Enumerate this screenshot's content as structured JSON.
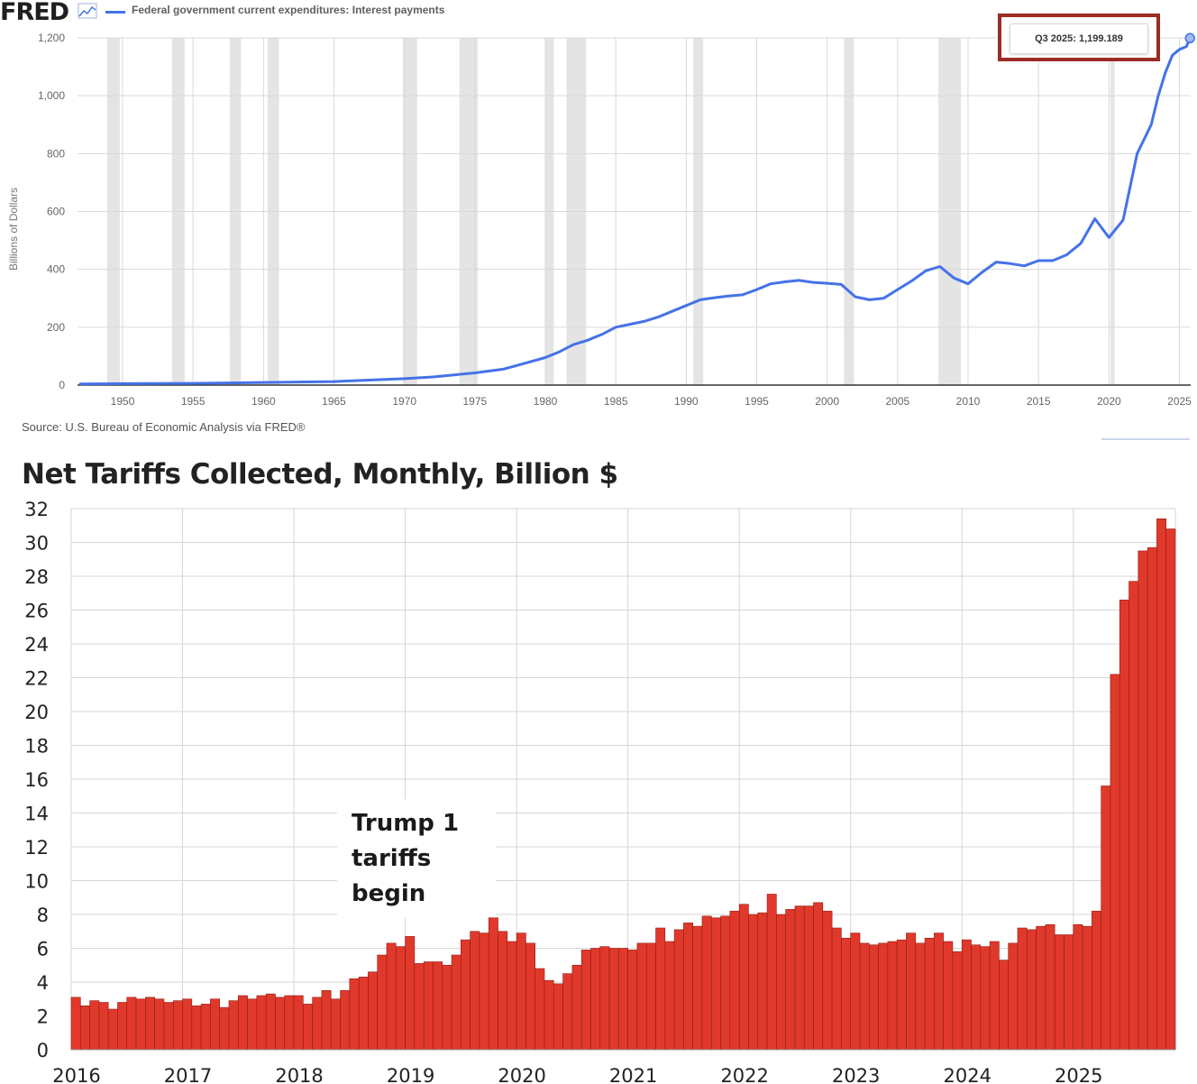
{
  "fred": {
    "logo": "FRED",
    "logo_icon": "line-chart-icon",
    "legend_label": "Federal government current expenditures: Interest payments",
    "ylabel": "Billions of Dollars",
    "source": "Source: U.S. Bureau of Economic Analysis via FRED®",
    "tooltip": "Q3 2025:  1,199.189",
    "colors": {
      "line": "#4572e8",
      "recession": "#e4e4e4",
      "highlight": "#9b2c23"
    }
  },
  "tariffs": {
    "title": "Net Tariffs Collected, Monthly, Billion $",
    "annotation": [
      "Trump 1",
      "tariffs",
      "begin"
    ],
    "colors": {
      "bar": "#e0392b",
      "bar_edge": "#8f1c12"
    }
  },
  "chart_data": [
    {
      "type": "line",
      "title": "Federal government current expenditures: Interest payments",
      "xlabel": "",
      "ylabel": "Billions of Dollars",
      "xlim": [
        1946.8,
        2025.8
      ],
      "ylim": [
        0,
        1200
      ],
      "yticks": [
        0,
        200,
        400,
        600,
        800,
        1000,
        1200
      ],
      "ytick_labels": [
        "0",
        "200",
        "400",
        "600",
        "800",
        "1,000",
        "1,200"
      ],
      "xticks": [
        1950,
        1955,
        1960,
        1965,
        1970,
        1975,
        1980,
        1985,
        1990,
        1995,
        2000,
        2005,
        2010,
        2015,
        2020,
        2025
      ],
      "recessions": [
        [
          1948.9,
          1949.8
        ],
        [
          1953.5,
          1954.4
        ],
        [
          1957.6,
          1958.4
        ],
        [
          1960.3,
          1961.1
        ],
        [
          1969.9,
          1970.9
        ],
        [
          1973.9,
          1975.2
        ],
        [
          1980.0,
          1980.6
        ],
        [
          1981.5,
          1982.9
        ],
        [
          1990.5,
          1991.2
        ],
        [
          2001.2,
          2001.9
        ],
        [
          2007.9,
          2009.5
        ],
        [
          2020.1,
          2020.4
        ]
      ],
      "series": [
        {
          "name": "Federal government current expenditures: Interest payments",
          "x": [
            1947,
            1950,
            1955,
            1960,
            1965,
            1970,
            1972,
            1975,
            1977,
            1978,
            1980,
            1981,
            1982,
            1983,
            1984,
            1985,
            1986,
            1987,
            1988,
            1989,
            1990,
            1991,
            1992,
            1993,
            1994,
            1995,
            1996,
            1997,
            1998,
            1999,
            2000,
            2001,
            2002,
            2003,
            2004,
            2005,
            2006,
            2007,
            2008,
            2009,
            2010,
            2011,
            2012,
            2013,
            2014,
            2015,
            2016,
            2017,
            2018,
            2019,
            2020,
            2021,
            2022,
            2023,
            2023.5,
            2024,
            2024.5,
            2025,
            2025.5,
            2025.75
          ],
          "y": [
            4,
            5,
            6,
            9,
            12,
            22,
            28,
            42,
            55,
            68,
            95,
            115,
            140,
            155,
            175,
            200,
            210,
            220,
            235,
            255,
            275,
            295,
            302,
            308,
            312,
            330,
            350,
            357,
            362,
            355,
            352,
            348,
            305,
            295,
            300,
            330,
            360,
            395,
            410,
            370,
            350,
            390,
            425,
            420,
            412,
            430,
            430,
            450,
            490,
            575,
            510,
            570,
            800,
            900,
            1000,
            1080,
            1140,
            1160,
            1170,
            1199.189
          ]
        }
      ],
      "annotations": [
        "Q3 2025:  1,199.189"
      ]
    },
    {
      "type": "bar",
      "title": "Net Tariffs Collected, Monthly, Billion $",
      "xlabel": "",
      "ylabel": "",
      "ylim": [
        0,
        32
      ],
      "yticks": [
        0,
        2,
        4,
        6,
        8,
        10,
        12,
        14,
        16,
        18,
        20,
        22,
        24,
        26,
        28,
        30,
        32
      ],
      "year_labels": [
        "2016",
        "2017",
        "2018",
        "2019",
        "2020",
        "2021",
        "2022",
        "2023",
        "2024",
        "2025"
      ],
      "start": "2016-01",
      "values": [
        3.1,
        2.6,
        2.9,
        2.8,
        2.4,
        2.8,
        3.1,
        3.0,
        3.1,
        3.0,
        2.8,
        2.9,
        3.0,
        2.6,
        2.7,
        3.0,
        2.5,
        2.9,
        3.2,
        3.0,
        3.2,
        3.3,
        3.1,
        3.2,
        3.2,
        2.7,
        3.1,
        3.5,
        3.0,
        3.5,
        4.2,
        4.3,
        4.6,
        5.6,
        6.3,
        6.1,
        6.7,
        5.1,
        5.2,
        5.2,
        5.0,
        5.6,
        6.5,
        7.0,
        6.9,
        7.8,
        7.0,
        6.4,
        6.9,
        6.3,
        4.8,
        4.1,
        3.9,
        4.5,
        5.0,
        5.9,
        6.0,
        6.1,
        6.0,
        6.0,
        5.9,
        6.3,
        6.3,
        7.2,
        6.4,
        7.1,
        7.5,
        7.3,
        7.9,
        7.8,
        7.9,
        8.2,
        8.6,
        8.0,
        8.1,
        9.2,
        8.0,
        8.3,
        8.5,
        8.5,
        8.7,
        8.2,
        7.2,
        6.6,
        6.9,
        6.3,
        6.2,
        6.3,
        6.4,
        6.5,
        6.9,
        6.3,
        6.6,
        6.9,
        6.4,
        5.8,
        6.5,
        6.2,
        6.1,
        6.4,
        5.3,
        6.3,
        7.2,
        7.1,
        7.3,
        7.4,
        6.8,
        6.8,
        7.4,
        7.3,
        8.2,
        15.6,
        22.2,
        26.6,
        27.7,
        29.5,
        29.7,
        31.4,
        30.8
      ],
      "annotations": [
        "Trump 1 tariffs begin"
      ]
    }
  ]
}
